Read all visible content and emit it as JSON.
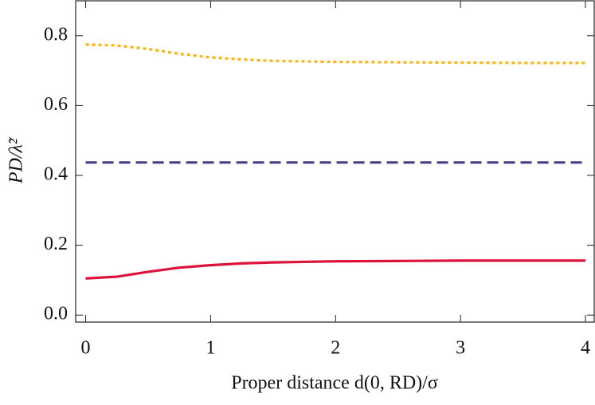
{
  "chart_data": {
    "type": "line",
    "xlabel": "Proper distance  d(0, RD)/σ",
    "ylabel": "PD/λ̃²",
    "x": [
      0,
      0.25,
      0.5,
      0.75,
      1,
      1.25,
      1.5,
      2,
      2.5,
      3,
      3.5,
      4
    ],
    "series": [
      {
        "color": "#dc143c",
        "style": "solid",
        "values": [
          0.105,
          0.11,
          0.124,
          0.136,
          0.143,
          0.148,
          0.151,
          0.154,
          0.155,
          0.156,
          0.156,
          0.156
        ]
      },
      {
        "color": "#483d8b",
        "style": "dashed",
        "values": [
          0.437,
          0.437,
          0.437,
          0.437,
          0.437,
          0.437,
          0.437,
          0.437,
          0.437,
          0.437,
          0.437,
          0.437
        ]
      },
      {
        "color": "#ffb30f",
        "style": "dotted",
        "values": [
          0.775,
          0.772,
          0.762,
          0.748,
          0.738,
          0.732,
          0.728,
          0.725,
          0.724,
          0.723,
          0.722,
          0.722
        ]
      }
    ],
    "xlim": [
      -0.08,
      4.07
    ],
    "ylim": [
      -0.02,
      0.9
    ],
    "xticks": [
      0,
      1,
      2,
      3,
      4
    ],
    "yticks": [
      {
        "value": 0,
        "label": "0.0"
      },
      0.2,
      0.4,
      0.6,
      0.8
    ]
  }
}
